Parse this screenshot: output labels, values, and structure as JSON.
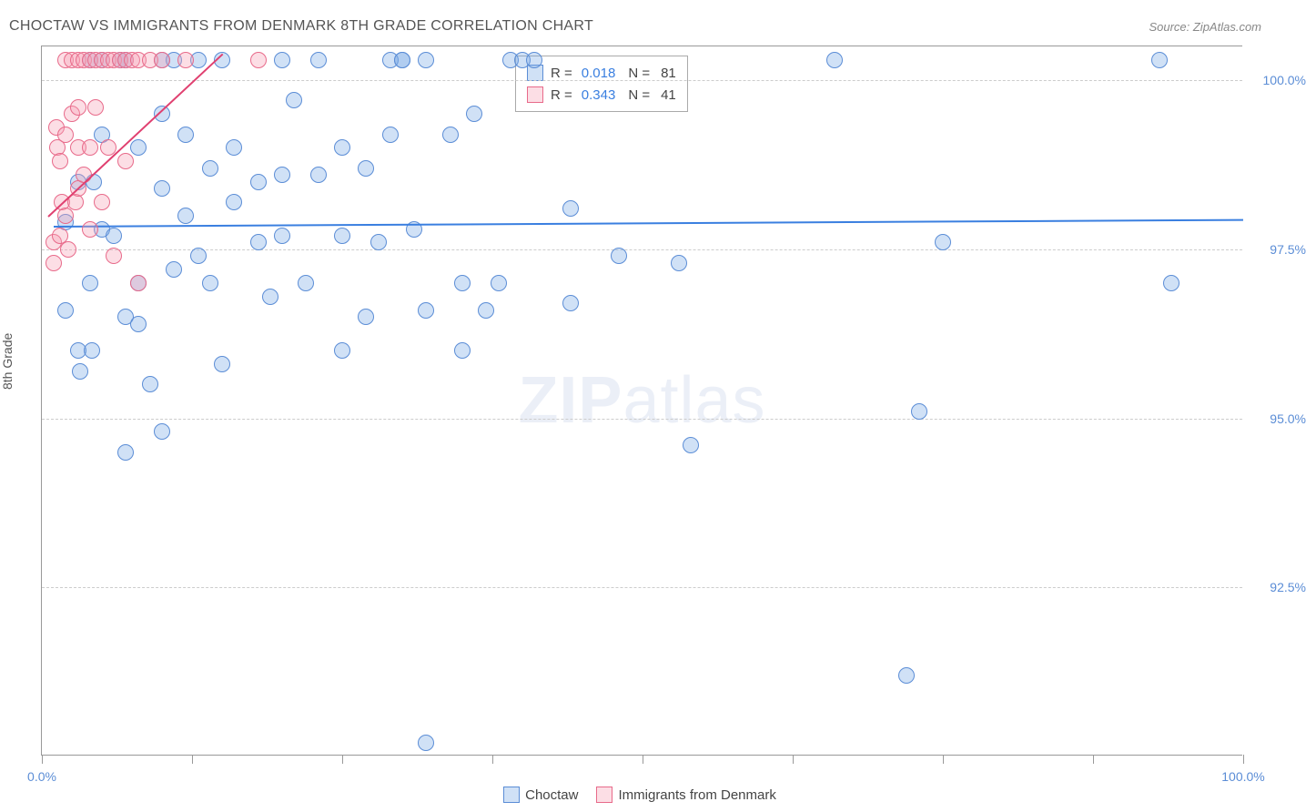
{
  "title": "CHOCTAW VS IMMIGRANTS FROM DENMARK 8TH GRADE CORRELATION CHART",
  "source": "Source: ZipAtlas.com",
  "y_axis_label": "8th Grade",
  "watermark": {
    "bold": "ZIP",
    "rest": "atlas"
  },
  "chart": {
    "type": "scatter",
    "background_color": "#ffffff",
    "grid_color": "#cccccc",
    "axis_color": "#999999",
    "xlim": [
      0,
      100
    ],
    "ylim": [
      90,
      100.5
    ],
    "y_ticks": [
      {
        "value": 92.5,
        "label": "92.5%"
      },
      {
        "value": 95.0,
        "label": "95.0%"
      },
      {
        "value": 97.5,
        "label": "97.5%"
      },
      {
        "value": 100.0,
        "label": "100.0%"
      }
    ],
    "x_ticks": [
      0,
      12.5,
      25,
      37.5,
      50,
      62.5,
      75,
      87.5,
      100
    ],
    "x_tick_labels": {
      "0": "0.0%",
      "100": "100.0%"
    },
    "point_radius": 9,
    "series": [
      {
        "name": "Choctaw",
        "color_fill": "rgba(120, 170, 230, 0.35)",
        "color_stroke": "#5b8dd6",
        "R": "0.018",
        "N": "81",
        "trend": {
          "x1": 1,
          "y1": 97.85,
          "x2": 100,
          "y2": 97.95,
          "color": "#3a7fe0",
          "width": 2
        },
        "points": [
          [
            2,
            96.6
          ],
          [
            2,
            97.9
          ],
          [
            3,
            96.0
          ],
          [
            3,
            98.5
          ],
          [
            3.2,
            95.7
          ],
          [
            4,
            100.3
          ],
          [
            4,
            97.0
          ],
          [
            4.2,
            96.0
          ],
          [
            4.3,
            98.5
          ],
          [
            5,
            100.3
          ],
          [
            5,
            97.8
          ],
          [
            5,
            99.2
          ],
          [
            6,
            97.7
          ],
          [
            6.5,
            100.3
          ],
          [
            7,
            100.3
          ],
          [
            7,
            94.5
          ],
          [
            7,
            96.5
          ],
          [
            8,
            99.0
          ],
          [
            8,
            97.0
          ],
          [
            8,
            96.4
          ],
          [
            9,
            95.5
          ],
          [
            10,
            100.3
          ],
          [
            10,
            99.5
          ],
          [
            10,
            98.4
          ],
          [
            10,
            94.8
          ],
          [
            11,
            100.3
          ],
          [
            11,
            97.2
          ],
          [
            12,
            99.2
          ],
          [
            12,
            98.0
          ],
          [
            13,
            100.3
          ],
          [
            13,
            97.4
          ],
          [
            14,
            98.7
          ],
          [
            14,
            97.0
          ],
          [
            15,
            100.3
          ],
          [
            15,
            95.8
          ],
          [
            16,
            99.0
          ],
          [
            16,
            98.2
          ],
          [
            18,
            98.5
          ],
          [
            18,
            97.6
          ],
          [
            19,
            96.8
          ],
          [
            20,
            100.3
          ],
          [
            20,
            98.6
          ],
          [
            20,
            97.7
          ],
          [
            21,
            99.7
          ],
          [
            22,
            97.0
          ],
          [
            23,
            100.3
          ],
          [
            23,
            98.6
          ],
          [
            25,
            96.0
          ],
          [
            25,
            97.7
          ],
          [
            25,
            99.0
          ],
          [
            27,
            98.7
          ],
          [
            27,
            96.5
          ],
          [
            28,
            97.6
          ],
          [
            29,
            100.3
          ],
          [
            29,
            99.2
          ],
          [
            30,
            100.3
          ],
          [
            30,
            100.3
          ],
          [
            31,
            97.8
          ],
          [
            32,
            100.3
          ],
          [
            32,
            96.6
          ],
          [
            32,
            90.2
          ],
          [
            34,
            99.2
          ],
          [
            35,
            97.0
          ],
          [
            35,
            96.0
          ],
          [
            36,
            99.5
          ],
          [
            37,
            96.6
          ],
          [
            38,
            97.0
          ],
          [
            39,
            100.3
          ],
          [
            40,
            100.3
          ],
          [
            41,
            100.3
          ],
          [
            44,
            96.7
          ],
          [
            44,
            98.1
          ],
          [
            48,
            97.4
          ],
          [
            53,
            97.3
          ],
          [
            54,
            94.6
          ],
          [
            66,
            100.3
          ],
          [
            72,
            91.2
          ],
          [
            73,
            95.1
          ],
          [
            75,
            97.6
          ],
          [
            93,
            100.3
          ],
          [
            94,
            97.0
          ]
        ]
      },
      {
        "name": "Immigrants from Denmark",
        "color_fill": "rgba(245, 160, 180, 0.35)",
        "color_stroke": "#e86a8a",
        "R": "0.343",
        "N": "41",
        "trend": {
          "x1": 0.5,
          "y1": 98.0,
          "x2": 15,
          "y2": 100.4,
          "color": "#e04070",
          "width": 2
        },
        "points": [
          [
            1,
            97.6
          ],
          [
            1,
            97.3
          ],
          [
            1.2,
            99.3
          ],
          [
            1.3,
            99.0
          ],
          [
            1.5,
            98.8
          ],
          [
            1.5,
            97.7
          ],
          [
            1.7,
            98.2
          ],
          [
            2,
            100.3
          ],
          [
            2,
            99.2
          ],
          [
            2,
            98.0
          ],
          [
            2.2,
            97.5
          ],
          [
            2.5,
            100.3
          ],
          [
            2.5,
            99.5
          ],
          [
            2.8,
            98.2
          ],
          [
            3,
            100.3
          ],
          [
            3,
            99.6
          ],
          [
            3,
            98.4
          ],
          [
            3,
            99.0
          ],
          [
            3.5,
            98.6
          ],
          [
            3.5,
            100.3
          ],
          [
            4,
            100.3
          ],
          [
            4,
            99.0
          ],
          [
            4,
            97.8
          ],
          [
            4.5,
            100.3
          ],
          [
            4.5,
            99.6
          ],
          [
            5,
            100.3
          ],
          [
            5,
            98.2
          ],
          [
            5.5,
            100.3
          ],
          [
            5.5,
            99.0
          ],
          [
            6,
            100.3
          ],
          [
            6,
            97.4
          ],
          [
            6.5,
            100.3
          ],
          [
            7,
            100.3
          ],
          [
            7,
            98.8
          ],
          [
            7.5,
            100.3
          ],
          [
            8,
            100.3
          ],
          [
            8,
            97.0
          ],
          [
            9,
            100.3
          ],
          [
            10,
            100.3
          ],
          [
            12,
            100.3
          ],
          [
            18,
            100.3
          ]
        ]
      }
    ]
  },
  "legend_top": {
    "R_label": "R =",
    "N_label": "N ="
  },
  "legend_bottom": [
    "Choctaw",
    "Immigrants from Denmark"
  ]
}
